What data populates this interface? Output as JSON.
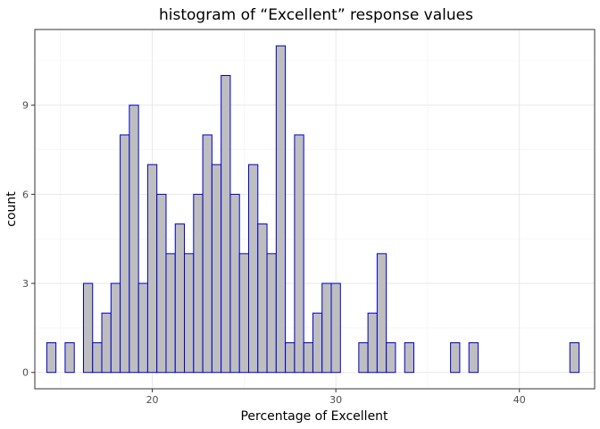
{
  "chart_data": {
    "type": "bar",
    "title": "histogram of “Excellent” response values",
    "xlabel": "Percentage of Excellent",
    "ylabel": "count",
    "xlim": [
      13.6,
      44.1
    ],
    "ylim": [
      -0.55,
      11.55
    ],
    "x_ticks": [
      20,
      30,
      40
    ],
    "y_ticks": [
      0,
      3,
      6,
      9
    ],
    "grid": true,
    "bin_width": 0.5,
    "bin_start": 14.25,
    "values": [
      1,
      0,
      1,
      0,
      3,
      1,
      2,
      3,
      8,
      9,
      3,
      7,
      6,
      4,
      5,
      4,
      6,
      8,
      7,
      10,
      6,
      4,
      7,
      5,
      4,
      11,
      1,
      8,
      1,
      2,
      3,
      3,
      0,
      0,
      1,
      2,
      4,
      1,
      0,
      1,
      0,
      0,
      0,
      0,
      1,
      0,
      1,
      0,
      0,
      0,
      0,
      0,
      0,
      0,
      0,
      0,
      0,
      1
    ],
    "colors": {
      "fill": "#bebebe",
      "outline": "#0000cc"
    }
  }
}
